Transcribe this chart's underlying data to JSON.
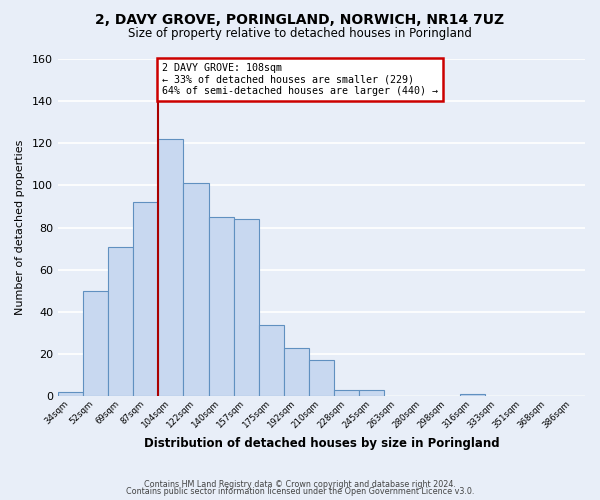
{
  "title": "2, DAVY GROVE, PORINGLAND, NORWICH, NR14 7UZ",
  "subtitle": "Size of property relative to detached houses in Poringland",
  "xlabel": "Distribution of detached houses by size in Poringland",
  "ylabel": "Number of detached properties",
  "bar_color": "#c8d8f0",
  "bar_edge_color": "#6090c0",
  "background_color": "#e8eef8",
  "plot_bg_color": "#e8eef8",
  "grid_color": "#ffffff",
  "bin_labels": [
    "34sqm",
    "52sqm",
    "69sqm",
    "87sqm",
    "104sqm",
    "122sqm",
    "140sqm",
    "157sqm",
    "175sqm",
    "192sqm",
    "210sqm",
    "228sqm",
    "245sqm",
    "263sqm",
    "280sqm",
    "298sqm",
    "316sqm",
    "333sqm",
    "351sqm",
    "368sqm",
    "386sqm"
  ],
  "bin_values": [
    2,
    50,
    71,
    92,
    122,
    101,
    85,
    84,
    34,
    23,
    17,
    3,
    3,
    0,
    0,
    0,
    1,
    0,
    0,
    0,
    0
  ],
  "ylim": [
    0,
    160
  ],
  "yticks": [
    0,
    20,
    40,
    60,
    80,
    100,
    120,
    140,
    160
  ],
  "property_line_x": 4,
  "property_line_color": "#aa0000",
  "annotation_text": "2 DAVY GROVE: 108sqm\n← 33% of detached houses are smaller (229)\n64% of semi-detached houses are larger (440) →",
  "annotation_box_color": "#ffffff",
  "annotation_box_edge": "#cc0000",
  "footer_line1": "Contains HM Land Registry data © Crown copyright and database right 2024.",
  "footer_line2": "Contains public sector information licensed under the Open Government Licence v3.0."
}
